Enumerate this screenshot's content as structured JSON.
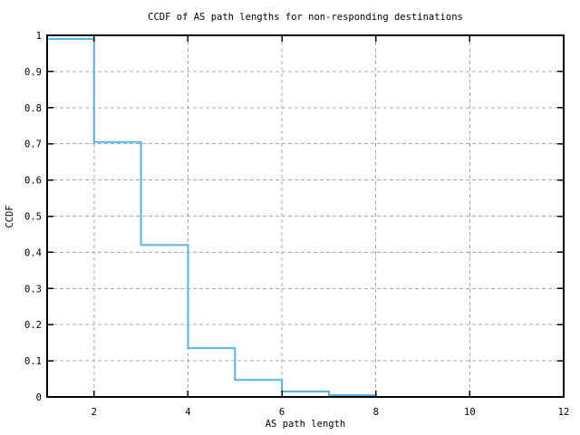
{
  "chart_data": {
    "type": "line",
    "subtype": "step-after",
    "title": "CCDF of AS path lengths for non-responding destinations",
    "xlabel": "AS path length",
    "ylabel": "CCDF",
    "xlim": [
      1,
      12
    ],
    "ylim": [
      0,
      1
    ],
    "x_ticks": [
      2,
      4,
      6,
      8,
      10,
      12
    ],
    "x_tick_labels": [
      "2",
      "4",
      "6",
      "8",
      "10",
      "12"
    ],
    "y_ticks": [
      0,
      0.1,
      0.2,
      0.3,
      0.4,
      0.5,
      0.6,
      0.7,
      0.8,
      0.9,
      1
    ],
    "y_tick_labels": [
      "0",
      "0.1",
      "0.2",
      "0.3",
      "0.4",
      "0.5",
      "0.6",
      "0.7",
      "0.8",
      "0.9",
      "1"
    ],
    "grid": true,
    "legend": "none",
    "colors": {
      "line": "#56b4e9",
      "grid": "#a8a8a8",
      "border": "#000000",
      "background": "#ffffff"
    },
    "series": [
      {
        "name": "CCDF",
        "x": [
          1,
          2,
          3,
          4,
          5,
          6,
          7,
          8
        ],
        "y": [
          0.99,
          0.705,
          0.42,
          0.135,
          0.047,
          0.015,
          0.005,
          0
        ]
      }
    ]
  }
}
